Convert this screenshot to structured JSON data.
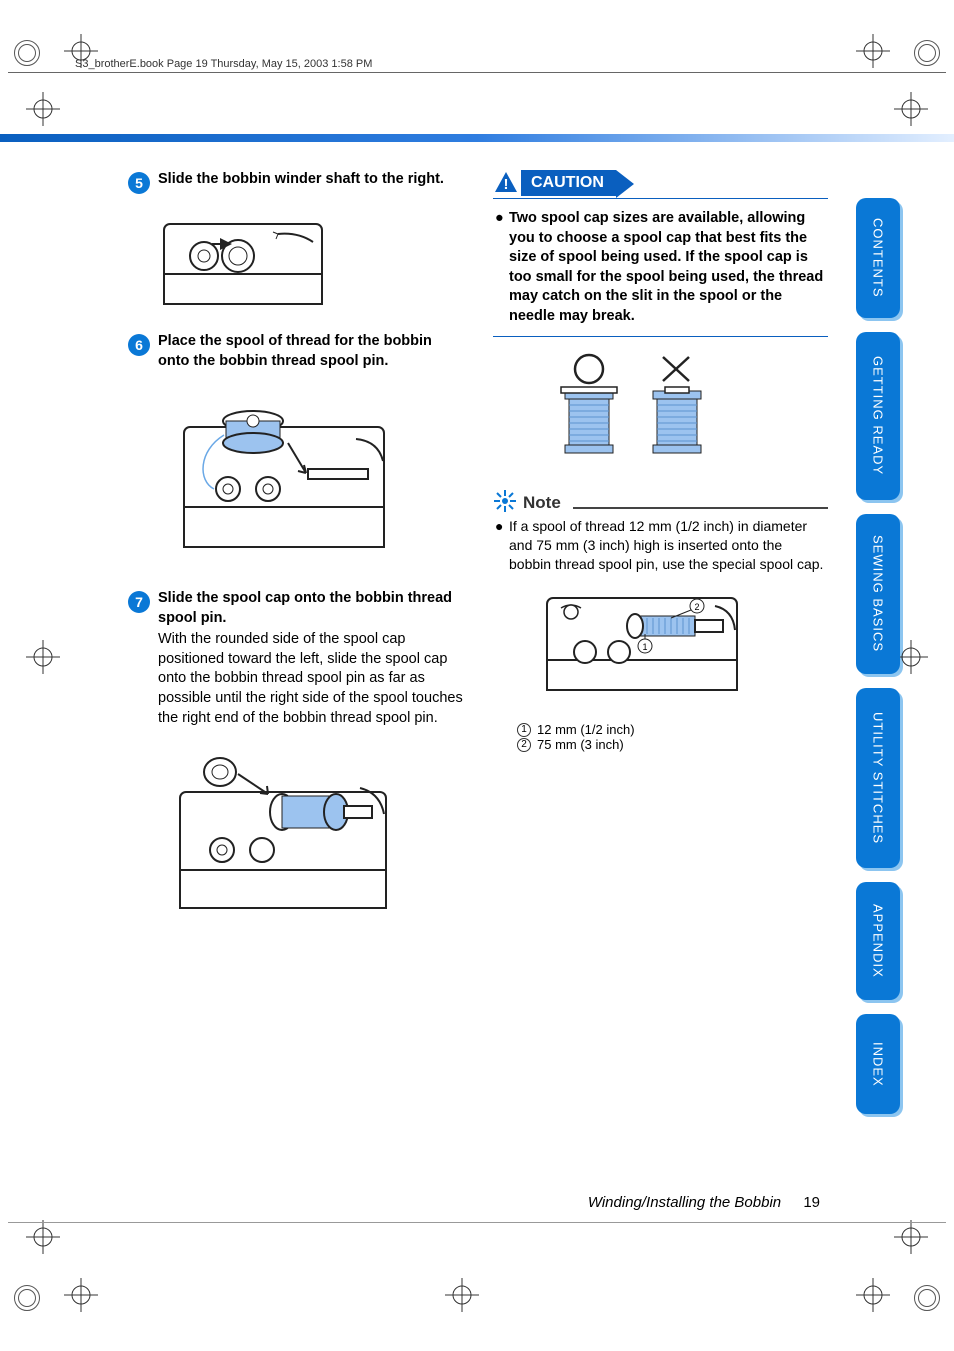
{
  "header": {
    "crop_text": "S3_brotherE.book  Page 19  Thursday, May 15, 2003  1:58 PM"
  },
  "colors": {
    "brand_blue": "#0a78d6",
    "banner_blue": "#0a5fbf",
    "thread_blue": "#9cc3ef",
    "line_gray": "#666666"
  },
  "steps": [
    {
      "num": "5",
      "title": "Slide the bobbin winder shaft to the right.",
      "body": ""
    },
    {
      "num": "6",
      "title": "Place the spool of thread for the bobbin onto the bobbin thread spool pin.",
      "body": ""
    },
    {
      "num": "7",
      "title": "Slide the spool cap onto the bobbin thread spool pin.",
      "body": "With the rounded side of the spool cap positioned toward the left, slide the spool cap onto the bobbin thread spool pin as far as possible until the right side of the spool touches the right end of the bobbin thread spool pin."
    }
  ],
  "caution": {
    "label": "CAUTION",
    "text": "Two spool cap sizes are available, allowing you to choose a spool cap that best fits the size of spool being used. If the spool cap is too small for the spool being used, the thread may catch on the slit in the spool or the needle may break."
  },
  "note": {
    "label": "Note",
    "text": "If a spool of thread 12 mm (1/2 inch) in diameter and 75 mm (3 inch) high is inserted onto the bobbin thread spool pin, use the special spool cap.",
    "callouts": [
      {
        "n": "1",
        "text": "12 mm (1/2 inch)"
      },
      {
        "n": "2",
        "text": "75 mm (3 inch)"
      }
    ]
  },
  "tabs": [
    "CONTENTS",
    "GETTING READY",
    "SEWING BASICS",
    "UTILITY STITCHES",
    "APPENDIX",
    "INDEX"
  ],
  "tab_heights": [
    120,
    168,
    160,
    180,
    118,
    100
  ],
  "footer": {
    "title": "Winding/Installing the Bobbin",
    "page": "19"
  }
}
